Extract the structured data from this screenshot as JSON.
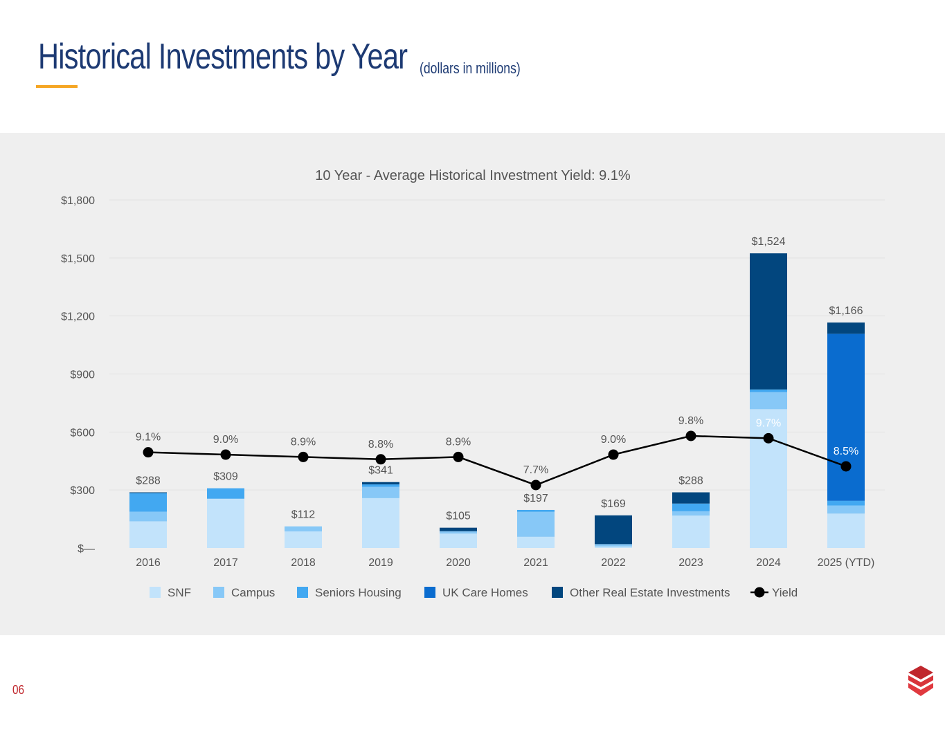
{
  "page": {
    "title": "Historical Investments by Year",
    "subtitle": "(dollars in millions)",
    "page_number": "06",
    "accent_color": "#f5a623",
    "title_color": "#1d3a73",
    "logo_icon": "red-shield-logo-icon"
  },
  "chart_data": {
    "type": "bar",
    "stacked": true,
    "title": "10 Year - Average Historical Investment Yield: 9.1%",
    "xlabel": "",
    "ylabel": "",
    "ylim": [
      0,
      1800
    ],
    "yticks": [
      0,
      300,
      600,
      900,
      1200,
      1500,
      1800
    ],
    "ytick_labels": [
      "$—",
      "$300",
      "$600",
      "$900",
      "$1,200",
      "$1,500",
      "$1,800"
    ],
    "grid": true,
    "legend_position": "bottom",
    "categories": [
      "2016",
      "2017",
      "2018",
      "2019",
      "2020",
      "2021",
      "2022",
      "2023",
      "2024",
      "2025 (YTD)"
    ],
    "series": [
      {
        "name": "SNF",
        "color": "#c2e3fb",
        "values": [
          138,
          255,
          86,
          258,
          75,
          58,
          8,
          168,
          718,
          178
        ]
      },
      {
        "name": "Campus",
        "color": "#87c8f7",
        "values": [
          50,
          0,
          26,
          58,
          12,
          129,
          12,
          22,
          88,
          42
        ]
      },
      {
        "name": "Seniors Housing",
        "color": "#42a8f1",
        "values": [
          96,
          54,
          0,
          13,
          0,
          10,
          0,
          40,
          14,
          24
        ]
      },
      {
        "name": "UK Care Homes",
        "color": "#0a6ccf",
        "values": [
          0,
          0,
          0,
          0,
          0,
          0,
          0,
          0,
          0,
          864
        ]
      },
      {
        "name": "Other Real Estate Investments",
        "color": "#02467e",
        "values": [
          4,
          0,
          0,
          12,
          18,
          0,
          149,
          58,
          704,
          58
        ]
      }
    ],
    "totals": [
      288,
      309,
      112,
      341,
      105,
      197,
      169,
      288,
      1524,
      1166
    ],
    "total_labels": [
      "$288",
      "$309",
      "$112",
      "$341",
      "$105",
      "$197",
      "$169",
      "$288",
      "$1,524",
      "$1,166"
    ],
    "yield": {
      "name": "Yield",
      "color": "#000000",
      "values": [
        9.1,
        9.0,
        8.9,
        8.8,
        8.9,
        7.7,
        9.0,
        9.8,
        9.7,
        8.5
      ],
      "labels": [
        "9.1%",
        "9.0%",
        "8.9%",
        "8.8%",
        "8.9%",
        "7.7%",
        "9.0%",
        "9.8%",
        "9.7%",
        "8.5%"
      ]
    }
  }
}
